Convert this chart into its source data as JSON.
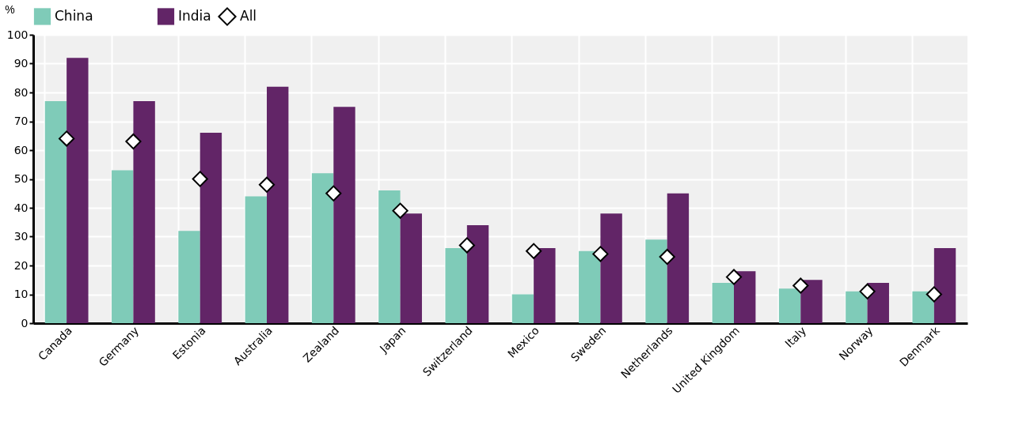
{
  "chart_data": {
    "type": "bar",
    "ylabel": "%",
    "categories": [
      "Canada",
      "Germany",
      "Estonia",
      "Australia",
      "Zealand",
      "Japan",
      "Switzerland",
      "Mexico",
      "Sweden",
      "Netherlands",
      "United Kingdom",
      "Italy",
      "Norway",
      "Denmark"
    ],
    "series": [
      {
        "name": "China",
        "color": "#7fcbb8",
        "values": [
          77,
          53,
          32,
          44,
          52,
          46,
          26,
          10,
          25,
          29,
          14,
          12,
          11,
          11
        ]
      },
      {
        "name": "India",
        "color": "#622567",
        "values": [
          92,
          77,
          66,
          82,
          75,
          38,
          34,
          26,
          38,
          45,
          18,
          15,
          14,
          26
        ]
      },
      {
        "name": "All",
        "type": "scatter",
        "marker": "diamond",
        "color": "#ffffff",
        "values": [
          64,
          63,
          50,
          48,
          45,
          39,
          27,
          25,
          24,
          23,
          16,
          13,
          11,
          10
        ]
      }
    ],
    "ylim": [
      0,
      100
    ],
    "yticks": [
      0,
      10,
      20,
      30,
      40,
      50,
      60,
      70,
      80,
      90,
      100
    ],
    "grid": true,
    "legend": "top left"
  }
}
